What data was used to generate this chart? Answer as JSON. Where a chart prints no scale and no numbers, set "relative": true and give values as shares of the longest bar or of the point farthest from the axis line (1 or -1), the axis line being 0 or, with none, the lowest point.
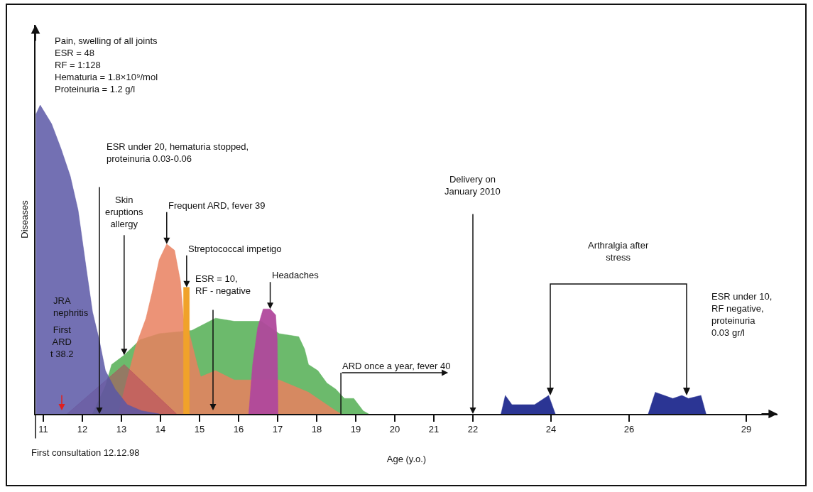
{
  "chart_data": {
    "type": "area",
    "relative": true,
    "xlabel": "Age (y.o.)",
    "ylabel": "Diseases",
    "tick_labels": "x",
    "xlim": [
      10.8,
      29.8
    ],
    "xticks": [
      11,
      12,
      13,
      14,
      15,
      16,
      17,
      18,
      19,
      20,
      21,
      22,
      24,
      26,
      29
    ],
    "series": [
      {
        "color": "#5cb35c",
        "x": [
          12.26,
          12.59,
          12.75,
          13.07,
          13.48,
          13.97,
          14.8,
          15.41,
          15.89,
          16.58,
          17.04,
          17.54,
          17.69,
          17.79,
          18.03,
          18.26,
          18.49,
          18.71,
          18.95,
          19.19,
          19.33
        ],
        "values": [
          0,
          0.09,
          0.16,
          0.19,
          0.24,
          0.26,
          0.27,
          0.31,
          0.3,
          0.3,
          0.26,
          0.25,
          0.21,
          0.16,
          0.14,
          0.1,
          0.08,
          0.05,
          0.05,
          0.01,
          0
        ]
      },
      {
        "color": "#e9805f",
        "x": [
          12.92,
          13.12,
          13.37,
          13.63,
          13.78,
          13.97,
          14.16,
          14.36,
          14.51,
          14.59,
          14.7,
          14.94,
          15.03,
          15.41,
          15.89,
          16.26,
          17.04,
          17.79,
          18.49,
          18.63
        ],
        "values": [
          0,
          0.1,
          0.22,
          0.31,
          0.39,
          0.5,
          0.55,
          0.53,
          0.43,
          0.31,
          0.28,
          0.16,
          0.12,
          0.14,
          0.11,
          0.11,
          0.11,
          0.07,
          0.01,
          0
        ]
      },
      {
        "color": "#b4455e",
        "x": [
          11.61,
          13.07,
          14.41
        ],
        "values": [
          0,
          0.16,
          0
        ]
      },
      {
        "color": "#f0a22a",
        "x": [
          14.59,
          14.59,
          14.74,
          14.74
        ],
        "values": [
          0,
          0.41,
          0.41,
          0
        ]
      },
      {
        "color": "#b0489c",
        "x": [
          16.26,
          16.36,
          16.49,
          16.63,
          16.81,
          16.95,
          16.99,
          17.01
        ],
        "values": [
          0,
          0.16,
          0.28,
          0.34,
          0.34,
          0.32,
          0.24,
          0
        ]
      },
      {
        "name": "JRA nephritis",
        "color": "#5b57a6",
        "x": [
          10.81,
          10.92,
          11.21,
          11.45,
          11.69,
          11.89,
          12.1,
          12.26,
          12.43,
          12.59,
          12.84,
          13.15,
          13.52,
          13.97
        ],
        "values": [
          0.97,
          1,
          0.94,
          0.86,
          0.77,
          0.66,
          0.47,
          0.33,
          0.24,
          0.14,
          0.08,
          0.03,
          0.01,
          0
        ]
      },
      {
        "color": "#2b3594",
        "x": [
          22.72,
          22.83,
          23.0,
          23.25,
          23.58,
          23.94,
          24.11,
          null,
          26.49,
          26.67,
          27.12,
          27.35,
          27.52,
          27.84,
          27.97
        ],
        "values": [
          0,
          0.06,
          0.03,
          0.03,
          0.03,
          0.06,
          0,
          null,
          0,
          0.07,
          0.05,
          0.06,
          0.05,
          0.06,
          0
        ]
      }
    ],
    "annotations": [
      "Pain, swelling of all joints\nESR = 48\nRF = 1:128\nHematuria = 1.8×10⁹/mol\nProteinuria = 1.2 g/l",
      "ESR under 20, hematuria stopped,\nproteinuria 0.03-0.06",
      {
        "text": "Skin\neruptions\nallergy",
        "x": 13.07,
        "y": 0.19
      },
      {
        "text": "Frequent ARD, fever 39",
        "x": 14.16,
        "y": 0.55
      },
      {
        "text": "Streptococcal impetigo",
        "x": 14.67,
        "y": 0.41
      },
      "ESR = 10,\nRF - negative",
      {
        "text": "Headaches",
        "x": 16.81,
        "y": 0.34
      },
      "First\nARD\nt 38.2",
      {
        "text": "ARD once a year, fever 40",
        "x": 18.62,
        "y": 0
      },
      "Delivery on\nJanuary 2010",
      "Arthralgia after\nstress",
      "ESR under 10,\nRF negative,\nproteinuria\n0.03 gr/l",
      "First consultation 12.12.98"
    ]
  }
}
